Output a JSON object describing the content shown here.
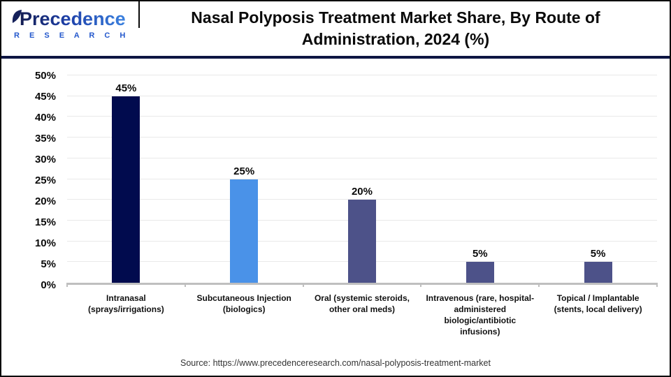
{
  "header": {
    "logo": {
      "brand": "Precedence",
      "subtitle": "R E S E A R C H"
    },
    "title": "Nasal Polyposis Treatment Market Share, By Route of Administration, 2024 (%)"
  },
  "chart_data": {
    "type": "bar",
    "title": "Nasal Polyposis Treatment Market Share, By Route of Administration, 2024 (%)",
    "categories": [
      "Intranasal (sprays/irrigations)",
      "Subcutaneous Injection (biologics)",
      "Oral (systemic steroids, other oral meds)",
      "Intravenous (rare, hospital-administered biologic/antibiotic infusions)",
      "Topical / Implantable (stents, local delivery)"
    ],
    "values": [
      45,
      25,
      20,
      5,
      5
    ],
    "value_labels": [
      "45%",
      "25%",
      "20%",
      "5%",
      "5%"
    ],
    "bar_colors": [
      "#010b4e",
      "#4a92e8",
      "#4d5289",
      "#4d5289",
      "#4d5289"
    ],
    "xlabel": "",
    "ylabel": "",
    "ylim": [
      0,
      50
    ],
    "yticks": [
      0,
      5,
      10,
      15,
      20,
      25,
      30,
      35,
      40,
      45,
      50
    ],
    "ytick_labels": [
      "0%",
      "5%",
      "10%",
      "15%",
      "20%",
      "25%",
      "30%",
      "35%",
      "40%",
      "45%",
      "50%"
    ],
    "grid": true,
    "legend": "none"
  },
  "footer": {
    "source": "Source: https://www.precedenceresearch.com/nasal-polyposis-treatment-market"
  },
  "colors": {
    "divider": "#0d1542",
    "axis_line": "#bfbfbf",
    "gridline": "#e9e9e9"
  }
}
